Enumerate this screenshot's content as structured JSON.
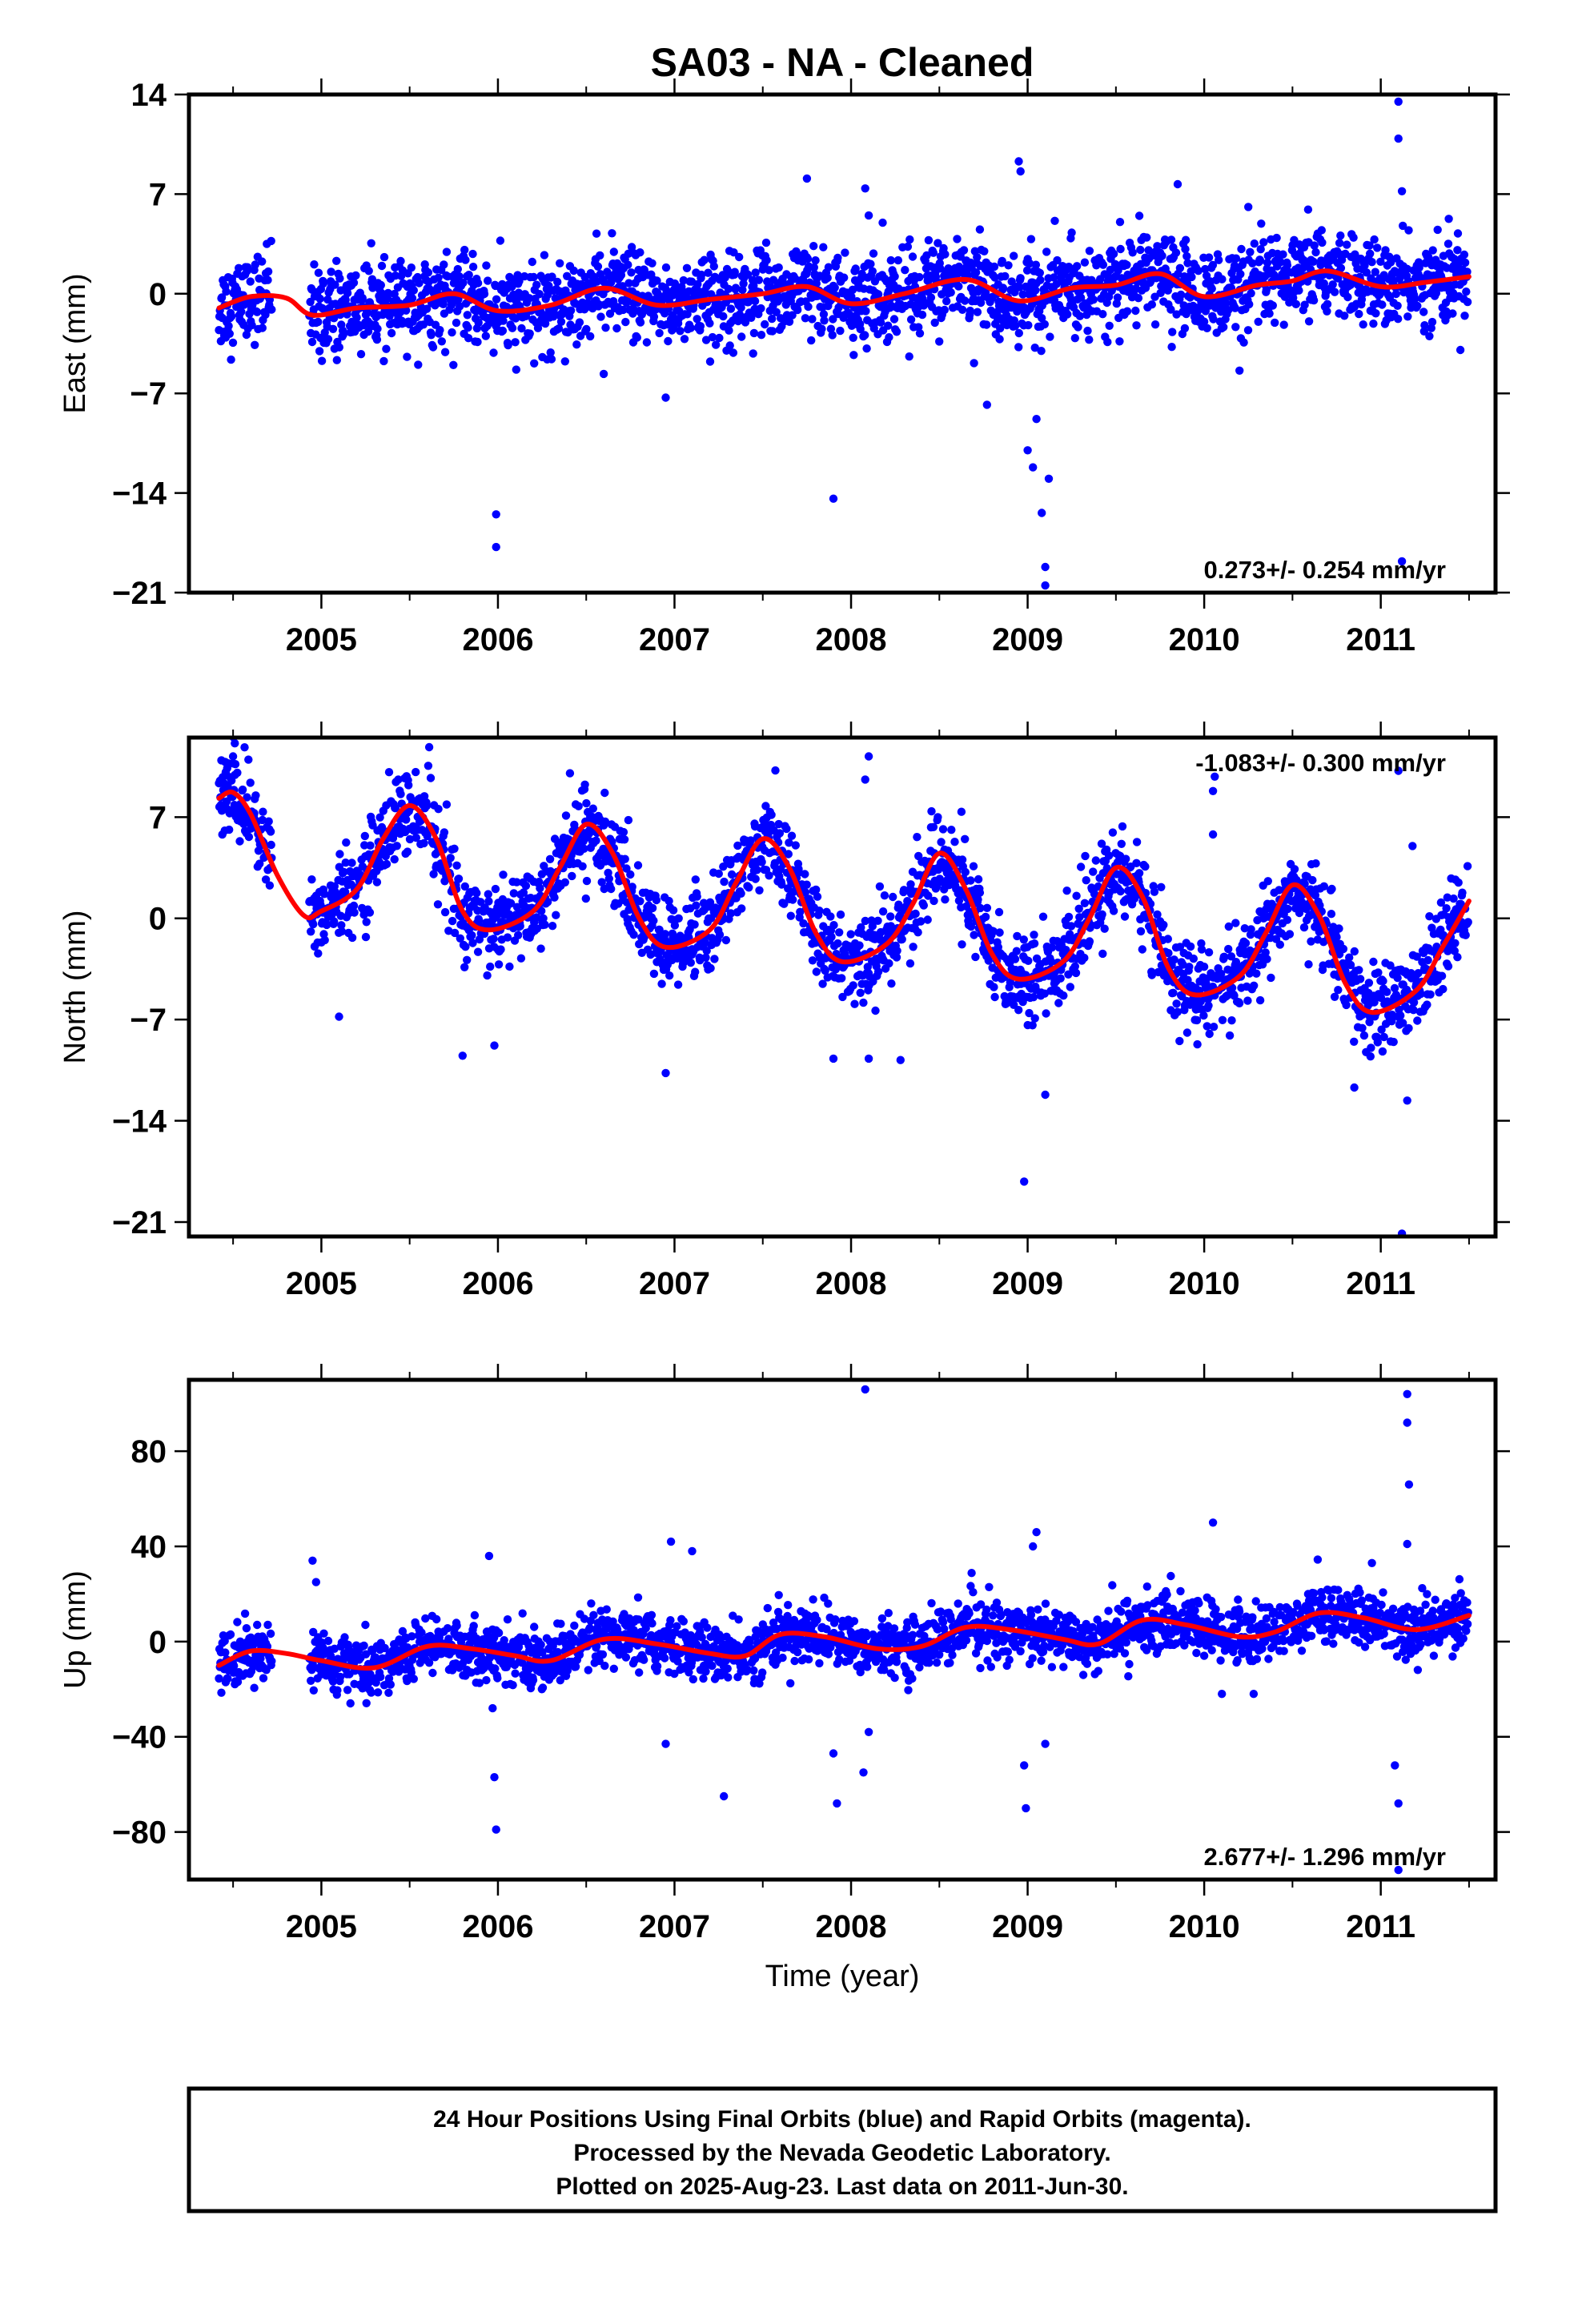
{
  "title": "SA03  - NA - Cleaned",
  "xlabel": "Time (year)",
  "footer": {
    "lines": [
      "24 Hour Positions Using Final Orbits (blue) and Rapid Orbits (magenta).",
      "Processed by the Nevada Geodetic Laboratory.",
      "Plotted on 2025-Aug-23. Last data on 2011-Jun-30."
    ]
  },
  "colors": {
    "points": "#0000ff",
    "model": "#ff0000",
    "axis": "#000000"
  },
  "chart_data": [
    {
      "type": "scatter",
      "component": "east",
      "ylabel": "East (mm)",
      "rate": "0.273+/- 0.254 mm/yr",
      "rate_position": "bottom-right",
      "xlim": [
        2004.25,
        2011.65
      ],
      "ylim": [
        -21,
        14
      ],
      "yticks": [
        "14",
        "7",
        "0",
        "−7",
        "−14",
        "−21"
      ],
      "ytick_values": [
        14,
        7,
        0,
        -7,
        -14,
        -21
      ],
      "xticks": [
        "2005",
        "2006",
        "2007",
        "2008",
        "2009",
        "2010",
        "2011"
      ],
      "xtick_values": [
        2005,
        2006,
        2007,
        2008,
        2009,
        2010,
        2011
      ],
      "rate_mm_per_yr": 0.273,
      "seasonal_amp": 0.8,
      "noise_sd": 1.5,
      "model": {
        "x": [
          2004.42,
          2004.6,
          2004.8,
          2004.95,
          2005.2,
          2005.5,
          2005.75,
          2006.0,
          2006.3,
          2006.6,
          2006.9,
          2007.2,
          2007.5,
          2007.75,
          2008.0,
          2008.3,
          2008.65,
          2008.95,
          2009.25,
          2009.5,
          2009.75,
          2010.0,
          2010.3,
          2010.5,
          2010.7,
          2011.0,
          2011.25,
          2011.5
        ],
        "y": [
          -1.0,
          -0.2,
          -0.3,
          -1.5,
          -1.0,
          -0.8,
          0.0,
          -1.2,
          -0.8,
          0.4,
          -0.8,
          -0.4,
          0.0,
          0.5,
          -0.7,
          0.0,
          1.0,
          -0.5,
          0.4,
          0.6,
          1.4,
          -0.2,
          0.6,
          0.9,
          1.6,
          0.5,
          0.8,
          1.2
        ]
      },
      "outliers": [
        {
          "x": 2005.99,
          "y": -15.5
        },
        {
          "x": 2005.99,
          "y": -17.8
        },
        {
          "x": 2007.75,
          "y": 8.1
        },
        {
          "x": 2007.9,
          "y": -14.4
        },
        {
          "x": 2008.08,
          "y": 7.4
        },
        {
          "x": 2008.1,
          "y": 5.5
        },
        {
          "x": 2008.95,
          "y": 9.3
        },
        {
          "x": 2008.96,
          "y": 8.6
        },
        {
          "x": 2009.0,
          "y": -11.0
        },
        {
          "x": 2009.03,
          "y": -12.2
        },
        {
          "x": 2009.05,
          "y": -8.8
        },
        {
          "x": 2009.08,
          "y": -15.4
        },
        {
          "x": 2009.1,
          "y": -19.2
        },
        {
          "x": 2009.1,
          "y": -20.5
        },
        {
          "x": 2009.12,
          "y": -13.0
        },
        {
          "x": 2006.95,
          "y": -7.3
        },
        {
          "x": 2008.77,
          "y": -7.8
        },
        {
          "x": 2009.85,
          "y": 7.7
        },
        {
          "x": 2010.2,
          "y": -5.4
        },
        {
          "x": 2011.1,
          "y": 13.5
        },
        {
          "x": 2011.1,
          "y": 10.9
        },
        {
          "x": 2011.12,
          "y": 7.2
        },
        {
          "x": 2011.12,
          "y": -18.8
        },
        {
          "x": 2010.25,
          "y": 6.1
        }
      ]
    },
    {
      "type": "scatter",
      "component": "north",
      "ylabel": "North (mm)",
      "rate": "-1.083+/- 0.300 mm/yr",
      "rate_position": "top-right",
      "xlim": [
        2004.25,
        2011.65
      ],
      "ylim": [
        -22,
        12.5
      ],
      "yticks": [
        "7",
        "0",
        "−7",
        "−14",
        "−21"
      ],
      "ytick_values": [
        7,
        0,
        -7,
        -14,
        -21
      ],
      "xticks": [
        "2005",
        "2006",
        "2007",
        "2008",
        "2009",
        "2010",
        "2011"
      ],
      "xtick_values": [
        2005,
        2006,
        2007,
        2008,
        2009,
        2010,
        2011
      ],
      "rate_mm_per_yr": -1.083,
      "seasonal_amp": 4.0,
      "noise_sd": 1.5,
      "model": {
        "x": [
          2004.42,
          2004.5,
          2004.6,
          2004.75,
          2004.9,
          2005.0,
          2005.2,
          2005.35,
          2005.5,
          2005.65,
          2005.8,
          2005.95,
          2006.2,
          2006.35,
          2006.5,
          2006.65,
          2006.8,
          2006.95,
          2007.2,
          2007.35,
          2007.5,
          2007.65,
          2007.8,
          2007.95,
          2008.2,
          2008.35,
          2008.5,
          2008.65,
          2008.8,
          2008.95,
          2009.2,
          2009.35,
          2009.5,
          2009.65,
          2009.8,
          2009.95,
          2010.2,
          2010.35,
          2010.5,
          2010.65,
          2010.8,
          2010.95,
          2011.2,
          2011.35,
          2011.5
        ],
        "y": [
          8.3,
          8.7,
          7.2,
          3.0,
          0.2,
          0.5,
          2.0,
          5.5,
          7.8,
          5.5,
          0.5,
          -0.8,
          0.5,
          3.5,
          6.5,
          4.5,
          0.0,
          -2.0,
          -0.8,
          2.5,
          5.5,
          3.5,
          -1.0,
          -3.0,
          -1.8,
          1.0,
          4.5,
          2.0,
          -2.5,
          -4.2,
          -3.0,
          0.0,
          3.5,
          1.5,
          -3.5,
          -5.3,
          -4.0,
          -1.0,
          2.3,
          0.2,
          -4.5,
          -6.5,
          -5.0,
          -2.0,
          1.2
        ]
      },
      "outliers": [
        {
          "x": 2004.51,
          "y": 12.1
        },
        {
          "x": 2004.5,
          "y": 11.2
        },
        {
          "x": 2005.1,
          "y": -6.8
        },
        {
          "x": 2005.8,
          "y": -9.5
        },
        {
          "x": 2005.98,
          "y": -8.8
        },
        {
          "x": 2006.95,
          "y": -10.7
        },
        {
          "x": 2007.9,
          "y": -9.7
        },
        {
          "x": 2008.1,
          "y": 11.2
        },
        {
          "x": 2008.08,
          "y": 9.6
        },
        {
          "x": 2008.1,
          "y": -9.7
        },
        {
          "x": 2008.28,
          "y": -9.8
        },
        {
          "x": 2008.98,
          "y": -18.2
        },
        {
          "x": 2009.1,
          "y": -12.2
        },
        {
          "x": 2010.05,
          "y": 8.8
        },
        {
          "x": 2010.05,
          "y": 5.8
        },
        {
          "x": 2010.06,
          "y": 9.8
        },
        {
          "x": 2010.85,
          "y": -11.7
        },
        {
          "x": 2011.1,
          "y": 10.2
        },
        {
          "x": 2011.12,
          "y": -21.8
        },
        {
          "x": 2011.15,
          "y": -12.6
        },
        {
          "x": 2011.18,
          "y": 5.0
        }
      ]
    },
    {
      "type": "scatter",
      "component": "up",
      "ylabel": "Up (mm)",
      "rate": "2.677+/- 1.296 mm/yr",
      "rate_position": "bottom-right",
      "xlim": [
        2004.25,
        2011.65
      ],
      "ylim": [
        -100,
        110
      ],
      "yticks": [
        "80",
        "40",
        "0",
        "−40",
        "−80"
      ],
      "ytick_values": [
        80,
        40,
        0,
        -40,
        -80
      ],
      "xticks": [
        "2005",
        "2006",
        "2007",
        "2008",
        "2009",
        "2010",
        "2011"
      ],
      "xtick_values": [
        2005,
        2006,
        2007,
        2008,
        2009,
        2010,
        2011
      ],
      "rate_mm_per_yr": 2.677,
      "seasonal_amp": 3.0,
      "noise_sd": 6.0,
      "model": {
        "x": [
          2004.42,
          2004.6,
          2004.8,
          2005.0,
          2005.3,
          2005.6,
          2005.85,
          2006.1,
          2006.3,
          2006.6,
          2006.9,
          2007.2,
          2007.4,
          2007.6,
          2007.85,
          2008.15,
          2008.4,
          2008.65,
          2008.9,
          2009.2,
          2009.4,
          2009.65,
          2009.9,
          2010.2,
          2010.4,
          2010.65,
          2010.9,
          2011.2,
          2011.5
        ],
        "y": [
          -10,
          -4,
          -5,
          -8,
          -11,
          -2,
          -3,
          -6,
          -8,
          1,
          -1,
          -5,
          -6,
          3,
          2,
          -3,
          -2,
          6,
          5,
          1,
          -1,
          9,
          7,
          2,
          4,
          12,
          10,
          5,
          11
        ]
      },
      "outliers": [
        {
          "x": 2004.95,
          "y": 34
        },
        {
          "x": 2004.97,
          "y": 25
        },
        {
          "x": 2005.95,
          "y": 36
        },
        {
          "x": 2005.97,
          "y": -28
        },
        {
          "x": 2005.98,
          "y": -57
        },
        {
          "x": 2005.99,
          "y": -79
        },
        {
          "x": 2006.95,
          "y": -43
        },
        {
          "x": 2006.98,
          "y": 42
        },
        {
          "x": 2007.28,
          "y": -65
        },
        {
          "x": 2007.1,
          "y": 38
        },
        {
          "x": 2007.9,
          "y": -47
        },
        {
          "x": 2007.92,
          "y": -68
        },
        {
          "x": 2008.08,
          "y": 106
        },
        {
          "x": 2008.07,
          "y": -55
        },
        {
          "x": 2008.1,
          "y": -38
        },
        {
          "x": 2008.98,
          "y": -52
        },
        {
          "x": 2008.99,
          "y": -70
        },
        {
          "x": 2009.05,
          "y": 46
        },
        {
          "x": 2009.03,
          "y": 40
        },
        {
          "x": 2009.1,
          "y": -43
        },
        {
          "x": 2010.05,
          "y": 50
        },
        {
          "x": 2010.1,
          "y": -22
        },
        {
          "x": 2010.28,
          "y": -22
        },
        {
          "x": 2010.95,
          "y": 33
        },
        {
          "x": 2011.08,
          "y": -52
        },
        {
          "x": 2011.1,
          "y": -68
        },
        {
          "x": 2011.1,
          "y": -96
        },
        {
          "x": 2011.15,
          "y": 104
        },
        {
          "x": 2011.15,
          "y": 92
        },
        {
          "x": 2011.16,
          "y": 66
        },
        {
          "x": 2011.15,
          "y": 41
        }
      ]
    }
  ]
}
